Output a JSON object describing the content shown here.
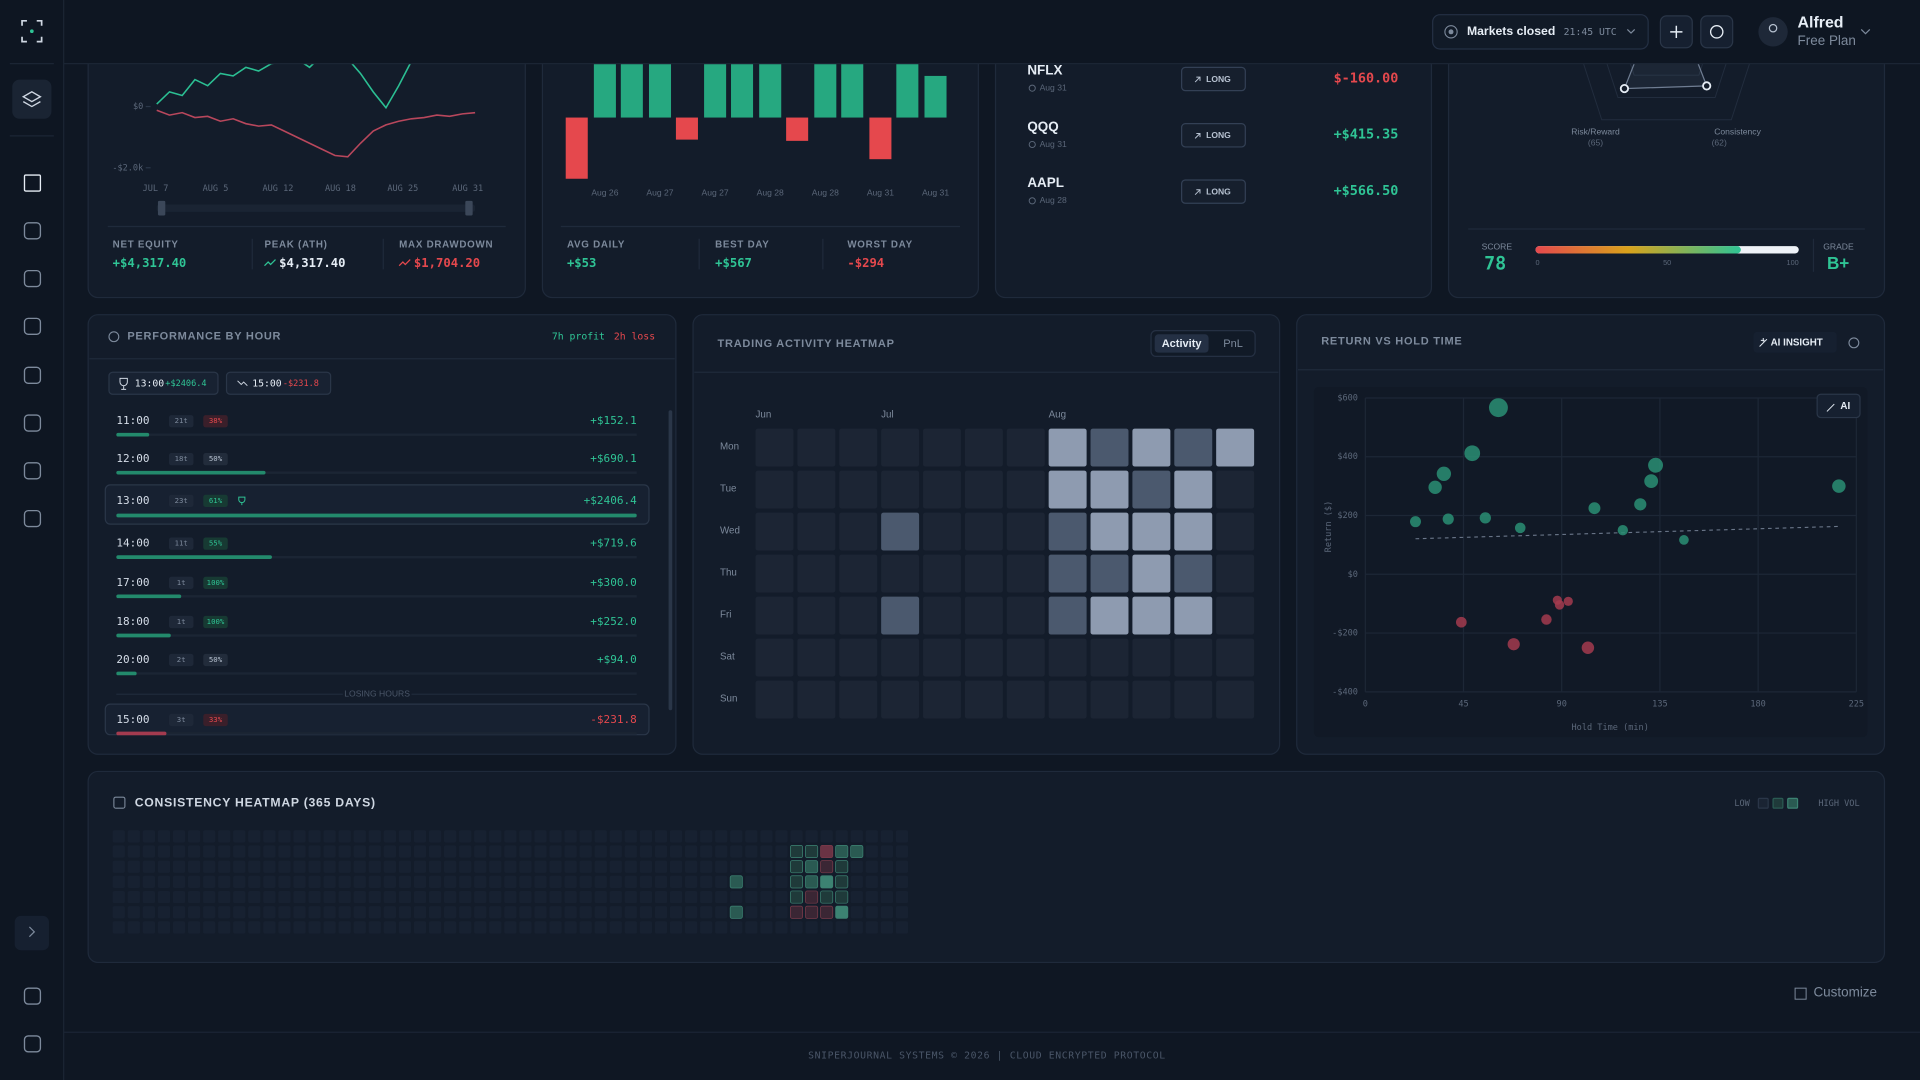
{
  "topbar": {
    "market_status": "Markets closed",
    "market_time": "21:45 UTC",
    "user_name": "Alfred",
    "user_plan": "Free Plan"
  },
  "equity": {
    "yticks": [
      {
        "value": 0,
        "label": "$0"
      },
      {
        "value": -2000,
        "label": "-$2.0k"
      }
    ],
    "x_labels": [
      "JUL 7",
      "AUG 5",
      "AUG 12",
      "AUG 18",
      "AUG 25",
      "AUG 31"
    ],
    "series": [
      {
        "color": "#2bbf93",
        "values": [
          80,
          480,
          360,
          880,
          680,
          1080,
          1000,
          1280,
          1160,
          1400,
          1480,
          1560,
          1280,
          1680,
          1800,
          1560,
          1080,
          480,
          -40,
          680,
          1480,
          2200,
          2800,
          3200,
          3400,
          3600
        ]
      },
      {
        "color": "#b8475c",
        "values": [
          -120,
          -280,
          -200,
          -360,
          -320,
          -480,
          -400,
          -560,
          -640,
          -600,
          -800,
          -1000,
          -1200,
          -1400,
          -1600,
          -1640,
          -1200,
          -800,
          -600,
          -480,
          -400,
          -360,
          -280,
          -320,
          -240,
          -200
        ]
      }
    ],
    "stats": [
      {
        "label": "NET EQUITY",
        "value": "+$4,317.40"
      },
      {
        "label": "PEAK (ATH)",
        "value": "$4,317.40"
      },
      {
        "label": "MAX DRAWDOWN",
        "value": "$1,704.20"
      }
    ]
  },
  "daily": {
    "categories": [
      null,
      "Aug 26",
      null,
      "Aug 27",
      null,
      "Aug 27",
      null,
      "Aug 28",
      null,
      "Aug 28",
      null,
      "Aug 31",
      null,
      "Aug 31"
    ],
    "values": [
      -294,
      480,
      420,
      400,
      -106,
      260,
      567,
      450,
      -112,
      430,
      380,
      -200,
      500,
      200
    ],
    "stats": [
      {
        "label": "AVG DAILY",
        "value": "+$53"
      },
      {
        "label": "BEST DAY",
        "value": "+$567"
      },
      {
        "label": "WORST DAY",
        "value": "-$294"
      }
    ]
  },
  "trades": [
    {
      "symbol": "NFLX",
      "date": "Aug 31",
      "side": "LONG",
      "pnl": "$-160.00"
    },
    {
      "symbol": "QQQ",
      "date": "Aug 31",
      "side": "LONG",
      "pnl": "+$415.35"
    },
    {
      "symbol": "AAPL",
      "date": "Aug 28",
      "side": "LONG",
      "pnl": "+$566.50"
    }
  ],
  "score": {
    "radar": [
      {
        "label": "Risk/Reward",
        "value_label": "(65)",
        "value": 65
      },
      {
        "label": "Consistency",
        "value_label": "(62)",
        "value": 62
      }
    ],
    "score_label": "SCORE",
    "score": 78,
    "scale": [
      0,
      50,
      100
    ],
    "grade_label": "GRADE",
    "grade": "B+"
  },
  "perf": {
    "title": "PERFORMANCE BY HOUR",
    "profit_hours": "7h profit",
    "loss_hours": "2h loss",
    "best": {
      "hour": "13:00",
      "pnl": "+$2406.4"
    },
    "worst": {
      "hour": "15:00",
      "pnl": "-$231.8"
    },
    "rows": [
      {
        "hour": "11:00",
        "trades": "21t",
        "win_rate": "38%",
        "pnl": 152.1,
        "pnl_label": "+$152.1"
      },
      {
        "hour": "12:00",
        "trades": "18t",
        "win_rate": "50%",
        "pnl": 690.1,
        "pnl_label": "+$690.1"
      },
      {
        "hour": "13:00",
        "trades": "23t",
        "win_rate": "61%",
        "pnl": 2406.4,
        "pnl_label": "+$2406.4"
      },
      {
        "hour": "14:00",
        "trades": "11t",
        "win_rate": "55%",
        "pnl": 719.6,
        "pnl_label": "+$719.6"
      },
      {
        "hour": "17:00",
        "trades": "1t",
        "win_rate": "100%",
        "pnl": 300.0,
        "pnl_label": "+$300.0"
      },
      {
        "hour": "18:00",
        "trades": "1t",
        "win_rate": "100%",
        "pnl": 252.0,
        "pnl_label": "+$252.0"
      },
      {
        "hour": "20:00",
        "trades": "2t",
        "win_rate": "50%",
        "pnl": 94.0,
        "pnl_label": "+$94.0"
      }
    ],
    "losing_label": "LOSING HOURS",
    "losing_rows": [
      {
        "hour": "15:00",
        "trades": "3t",
        "win_rate": "33%",
        "pnl": -231.8,
        "pnl_label": "-$231.8"
      }
    ]
  },
  "heatmap": {
    "title": "TRADING ACTIVITY HEATMAP",
    "tabs": [
      "Activity",
      "PnL"
    ],
    "months": [
      {
        "label": "Jun",
        "week": 0
      },
      {
        "label": "Jul",
        "week": 3
      },
      {
        "label": "Aug",
        "week": 7
      }
    ],
    "days": [
      "Mon",
      "Tue",
      "Wed",
      "Thu",
      "Fri",
      "Sat",
      "Sun"
    ],
    "values": [
      [
        0,
        0,
        0,
        0,
        0,
        0,
        0,
        3,
        2,
        3,
        2,
        3
      ],
      [
        0,
        0,
        0,
        0,
        0,
        0,
        0,
        3,
        3,
        2,
        3,
        0
      ],
      [
        0,
        0,
        0,
        2,
        0,
        0,
        0,
        2,
        3,
        3,
        3,
        0
      ],
      [
        0,
        0,
        0,
        0,
        0,
        0,
        0,
        2,
        2,
        3,
        2,
        0
      ],
      [
        0,
        0,
        0,
        2,
        0,
        0,
        0,
        2,
        3,
        3,
        3,
        0
      ],
      [
        0,
        0,
        0,
        0,
        0,
        0,
        0,
        0,
        0,
        0,
        0,
        0
      ],
      [
        0,
        0,
        0,
        0,
        0,
        0,
        0,
        0,
        0,
        0,
        0,
        0
      ]
    ]
  },
  "scatter": {
    "title": "RETURN VS HOLD TIME",
    "ai_button": "AI INSIGHT",
    "ai_badge": "AI",
    "x_label": "Hold Time (min)",
    "y_label": "Return ($)",
    "xlim": [
      0,
      225
    ],
    "xticks": [
      0,
      45,
      90,
      135,
      180,
      225
    ],
    "ylim": [
      -400,
      600
    ],
    "yticks": [
      {
        "value": -400,
        "label": "-$400"
      },
      {
        "value": -200,
        "label": "-$200"
      },
      {
        "value": 0,
        "label": "$0"
      },
      {
        "value": 200,
        "label": "$200"
      },
      {
        "value": 400,
        "label": "$400"
      },
      {
        "value": 600,
        "label": "$600"
      }
    ],
    "x": [
      61,
      49,
      36,
      32,
      23,
      38,
      55,
      71,
      105,
      118,
      126,
      131,
      133,
      146,
      217,
      44,
      68,
      83,
      88,
      93,
      89,
      102
    ],
    "values": [
      567,
      412,
      342,
      296,
      179,
      188,
      192,
      158,
      225,
      150,
      238,
      317,
      371,
      117,
      300,
      -163,
      -238,
      -154,
      -88,
      -92,
      -104,
      -250
    ],
    "gain_color": "#2a8f74",
    "loss_color": "#a33b4f"
  },
  "consistency": {
    "title": "CONSISTENCY HEATMAP (365 DAYS)",
    "legend_low": "LOW",
    "legend_high": "HIGH VOL",
    "cells": [
      {
        "week": 45,
        "day": 1,
        "value": 1
      },
      {
        "week": 46,
        "day": 1,
        "value": 1
      },
      {
        "week": 47,
        "day": 1,
        "value": -2
      },
      {
        "week": 48,
        "day": 1,
        "value": 2
      },
      {
        "week": 49,
        "day": 1,
        "value": 2
      },
      {
        "week": 45,
        "day": 2,
        "value": 1
      },
      {
        "week": 46,
        "day": 2,
        "value": 2
      },
      {
        "week": 47,
        "day": 2,
        "value": -1
      },
      {
        "week": 48,
        "day": 2,
        "value": 1
      },
      {
        "week": 41,
        "day": 3,
        "value": 2
      },
      {
        "week": 45,
        "day": 3,
        "value": 1
      },
      {
        "week": 46,
        "day": 3,
        "value": 2
      },
      {
        "week": 47,
        "day": 3,
        "value": 3
      },
      {
        "week": 48,
        "day": 3,
        "value": 1
      },
      {
        "week": 45,
        "day": 4,
        "value": 1
      },
      {
        "week": 46,
        "day": 4,
        "value": -1
      },
      {
        "week": 47,
        "day": 4,
        "value": 1
      },
      {
        "week": 48,
        "day": 4,
        "value": 1
      },
      {
        "week": 41,
        "day": 5,
        "value": 2
      },
      {
        "week": 45,
        "day": 5,
        "value": -1
      },
      {
        "week": 46,
        "day": 5,
        "value": -1
      },
      {
        "week": 47,
        "day": 5,
        "value": -1
      },
      {
        "week": 48,
        "day": 5,
        "value": 3
      }
    ]
  },
  "footer": {
    "customize": "Customize",
    "text": "SNIPERJOURNAL SYSTEMS © 2026 | CLOUD ENCRYPTED PROTOCOL"
  }
}
